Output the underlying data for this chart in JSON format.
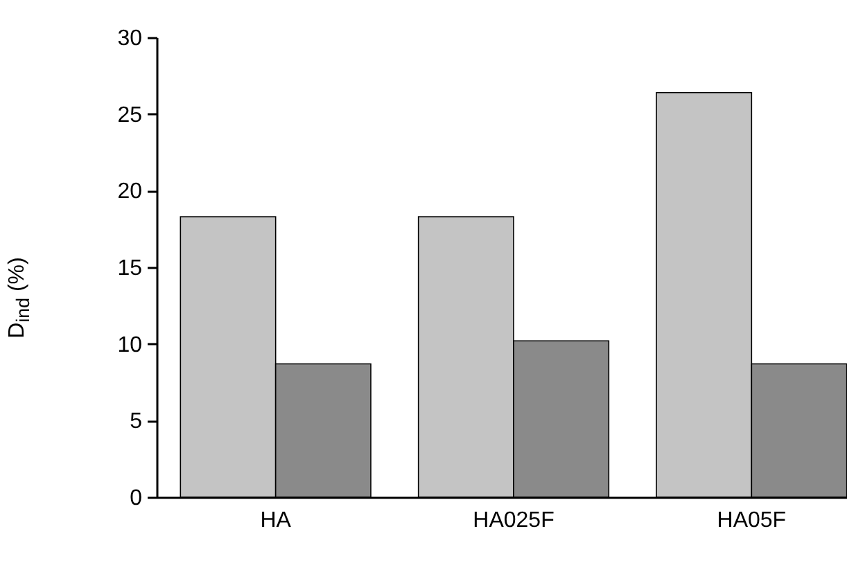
{
  "chart_data": {
    "type": "bar",
    "ylabel": "D$_{ind}$ (%)",
    "categories": [
      "HA",
      "HA025F",
      "HA05F"
    ],
    "series": [
      {
        "color": "#c4c4c4",
        "values": [
          18.3,
          18.3,
          26.4
        ]
      },
      {
        "color": "#8a8a8a",
        "values": [
          8.7,
          10.2,
          8.7
        ]
      }
    ],
    "ylim": [
      0,
      30
    ],
    "yticks": [
      0,
      5,
      10,
      15,
      20,
      25,
      30
    ],
    "grid": false,
    "legend": false
  }
}
